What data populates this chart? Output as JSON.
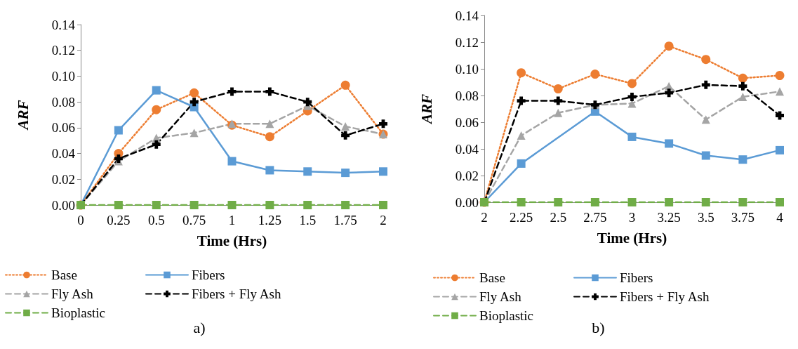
{
  "chart_data": [
    {
      "type": "line",
      "xlabel": "Time (Hrs)",
      "ylabel": "ARF",
      "categories": [
        "0",
        "0.25",
        "0.5",
        "0.75",
        "1",
        "1.25",
        "1.5",
        "1.75",
        "2"
      ],
      "ylim": [
        0,
        0.14
      ],
      "yticks": [
        {
          "value": 0,
          "label": "0.00"
        },
        {
          "value": 0.02,
          "label": "0.02"
        },
        {
          "value": 0.04,
          "label": "0.04"
        },
        {
          "value": 0.06,
          "label": "0.06"
        },
        {
          "value": 0.08,
          "label": "0.08"
        },
        {
          "value": 0.1,
          "label": "0.10"
        },
        {
          "value": 0.12,
          "label": "0.12"
        },
        {
          "value": 0.14,
          "label": "0.14"
        }
      ],
      "grid": false,
      "legend": "bottom",
      "annotations": [
        "a)"
      ],
      "series": [
        {
          "name": "Base",
          "color": "#ed7d31",
          "marker": "circle",
          "line_style": "dotted",
          "values": [
            0,
            0.04,
            0.074,
            0.087,
            0.062,
            0.053,
            0.073,
            0.093,
            0.055
          ]
        },
        {
          "name": "Fibers",
          "color": "#5b9bd5",
          "marker": "square",
          "line_style": "solid",
          "values": [
            0,
            0.058,
            0.089,
            0.076,
            0.034,
            0.027,
            0.026,
            0.025,
            0.026
          ]
        },
        {
          "name": "Fly Ash",
          "color": "#a5a5a5",
          "marker": "triangle",
          "line_style": "dashed",
          "values": [
            0,
            0.034,
            0.052,
            0.056,
            0.063,
            0.063,
            0.077,
            0.061,
            0.055
          ]
        },
        {
          "name": "Fibers + Fly Ash",
          "color": "#000000",
          "marker": "cross",
          "line_style": "dashed",
          "values": [
            0,
            0.036,
            0.047,
            0.08,
            0.088,
            0.088,
            0.08,
            0.054,
            0.063
          ]
        },
        {
          "name": "Bioplastic",
          "color": "#70ad47",
          "marker": "square",
          "line_style": "dashed",
          "values": [
            0,
            0,
            0,
            0,
            0,
            0,
            0,
            0,
            0
          ]
        }
      ]
    },
    {
      "type": "line",
      "xlabel": "Time (Hrs)",
      "ylabel": "ARF",
      "categories": [
        "2",
        "2.25",
        "2.5",
        "2.75",
        "3",
        "3.25",
        "3.5",
        "3.75",
        "4"
      ],
      "ylim": [
        0,
        0.14
      ],
      "yticks": [
        {
          "value": 0,
          "label": "0.00"
        },
        {
          "value": 0.02,
          "label": "0.02"
        },
        {
          "value": 0.04,
          "label": "0.04"
        },
        {
          "value": 0.06,
          "label": "0.06"
        },
        {
          "value": 0.08,
          "label": "0.08"
        },
        {
          "value": 0.1,
          "label": "0.10"
        },
        {
          "value": 0.12,
          "label": "0.12"
        },
        {
          "value": 0.14,
          "label": "0.14"
        }
      ],
      "grid": false,
      "legend": "bottom",
      "annotations": [
        "b)"
      ],
      "series": [
        {
          "name": "Base",
          "color": "#ed7d31",
          "marker": "circle",
          "line_style": "dotted",
          "values": [
            0,
            0.097,
            0.085,
            0.096,
            0.089,
            0.117,
            0.107,
            0.093,
            0.095
          ]
        },
        {
          "name": "Fibers",
          "color": "#5b9bd5",
          "marker": "square",
          "line_style": "solid",
          "values": [
            0,
            0.029,
            null,
            0.068,
            0.049,
            0.044,
            0.035,
            0.032,
            0.039
          ]
        },
        {
          "name": "Fly Ash",
          "color": "#a5a5a5",
          "marker": "triangle",
          "line_style": "dashed",
          "values": [
            0,
            0.05,
            0.067,
            0.073,
            0.074,
            0.087,
            0.062,
            0.079,
            0.083
          ]
        },
        {
          "name": "Fibers + Fly Ash",
          "color": "#000000",
          "marker": "cross",
          "line_style": "dashed",
          "values": [
            0,
            0.076,
            0.076,
            0.073,
            0.079,
            0.082,
            0.088,
            0.087,
            0.065
          ]
        },
        {
          "name": "Bioplastic",
          "color": "#70ad47",
          "marker": "square",
          "line_style": "dashed",
          "values": [
            0,
            0,
            0,
            0,
            0,
            0,
            0,
            0,
            0
          ]
        }
      ]
    }
  ]
}
